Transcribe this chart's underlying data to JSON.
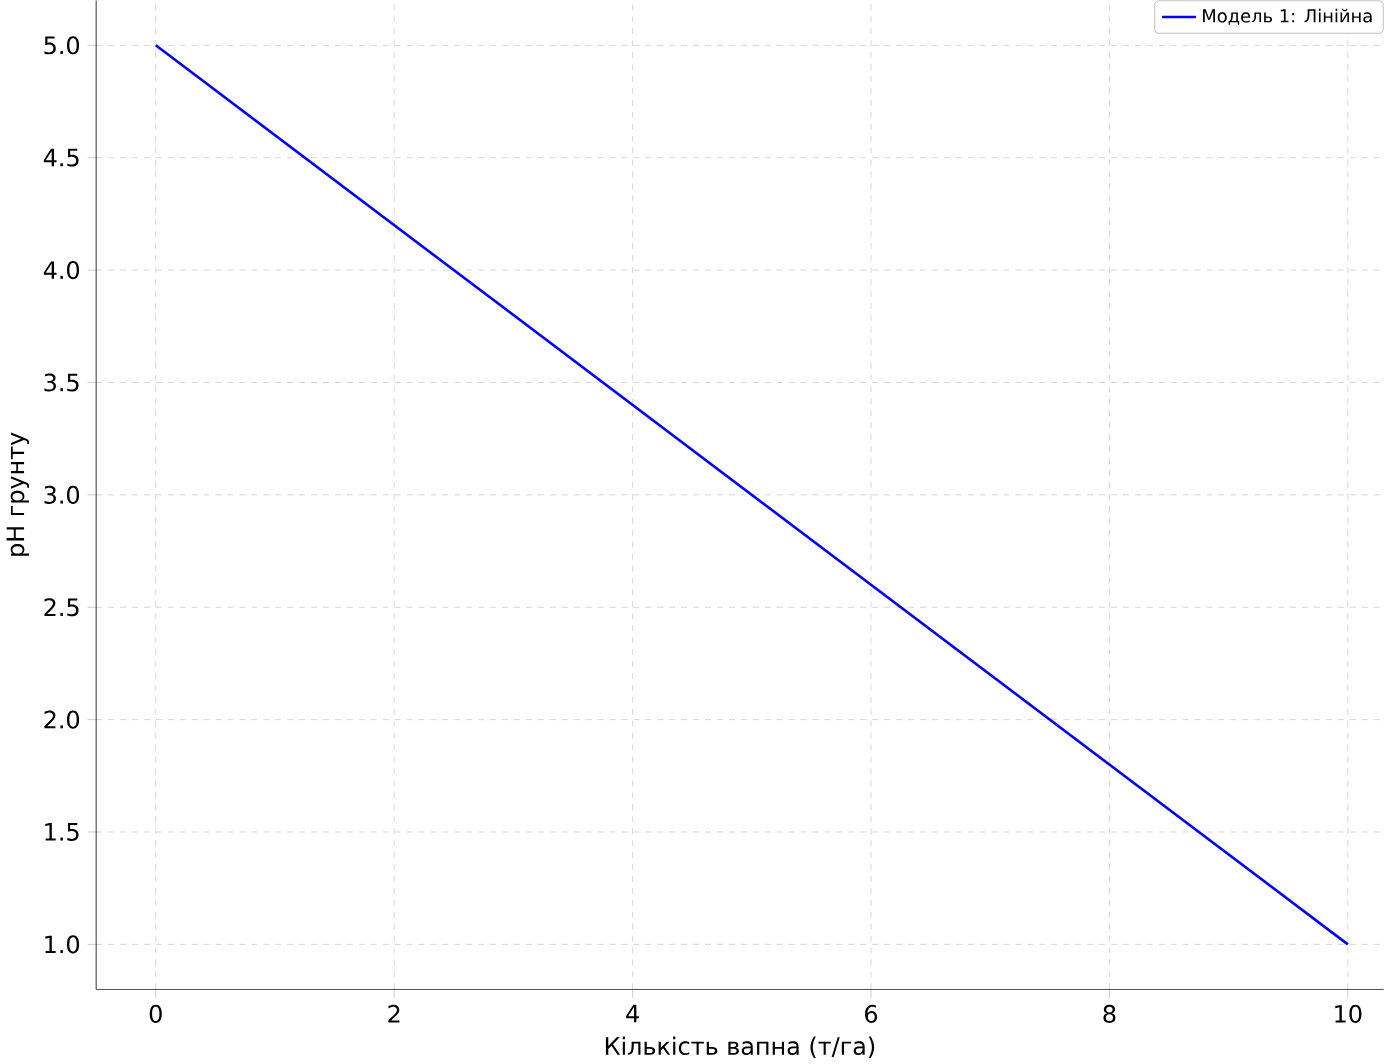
{
  "chart_data": {
    "type": "line",
    "xlabel": "Кількість вапна (т/га)",
    "ylabel": "pH грунту",
    "x": [
      0,
      10
    ],
    "series": [
      {
        "name": "Модель 1: Лінійна",
        "color": "#0000ff",
        "values": [
          5,
          1
        ]
      }
    ],
    "xlim": [
      -0.5,
      10.3
    ],
    "ylim": [
      0.8,
      5.2
    ],
    "xticks": [
      0,
      2,
      4,
      6,
      8,
      10
    ],
    "yticks": [
      {
        "value": 1,
        "label": "1.0"
      },
      {
        "value": 1.5,
        "label": "1.5"
      },
      {
        "value": 2,
        "label": "2.0"
      },
      {
        "value": 2.5,
        "label": "2.5"
      },
      {
        "value": 3,
        "label": "3.0"
      },
      {
        "value": 3.5,
        "label": "3.5"
      },
      {
        "value": 4,
        "label": "4.0"
      },
      {
        "value": 4.5,
        "label": "4.5"
      },
      {
        "value": 5,
        "label": "5.0"
      }
    ],
    "grid": true,
    "legend": "top right",
    "marker": "none",
    "line_style": "solid"
  }
}
